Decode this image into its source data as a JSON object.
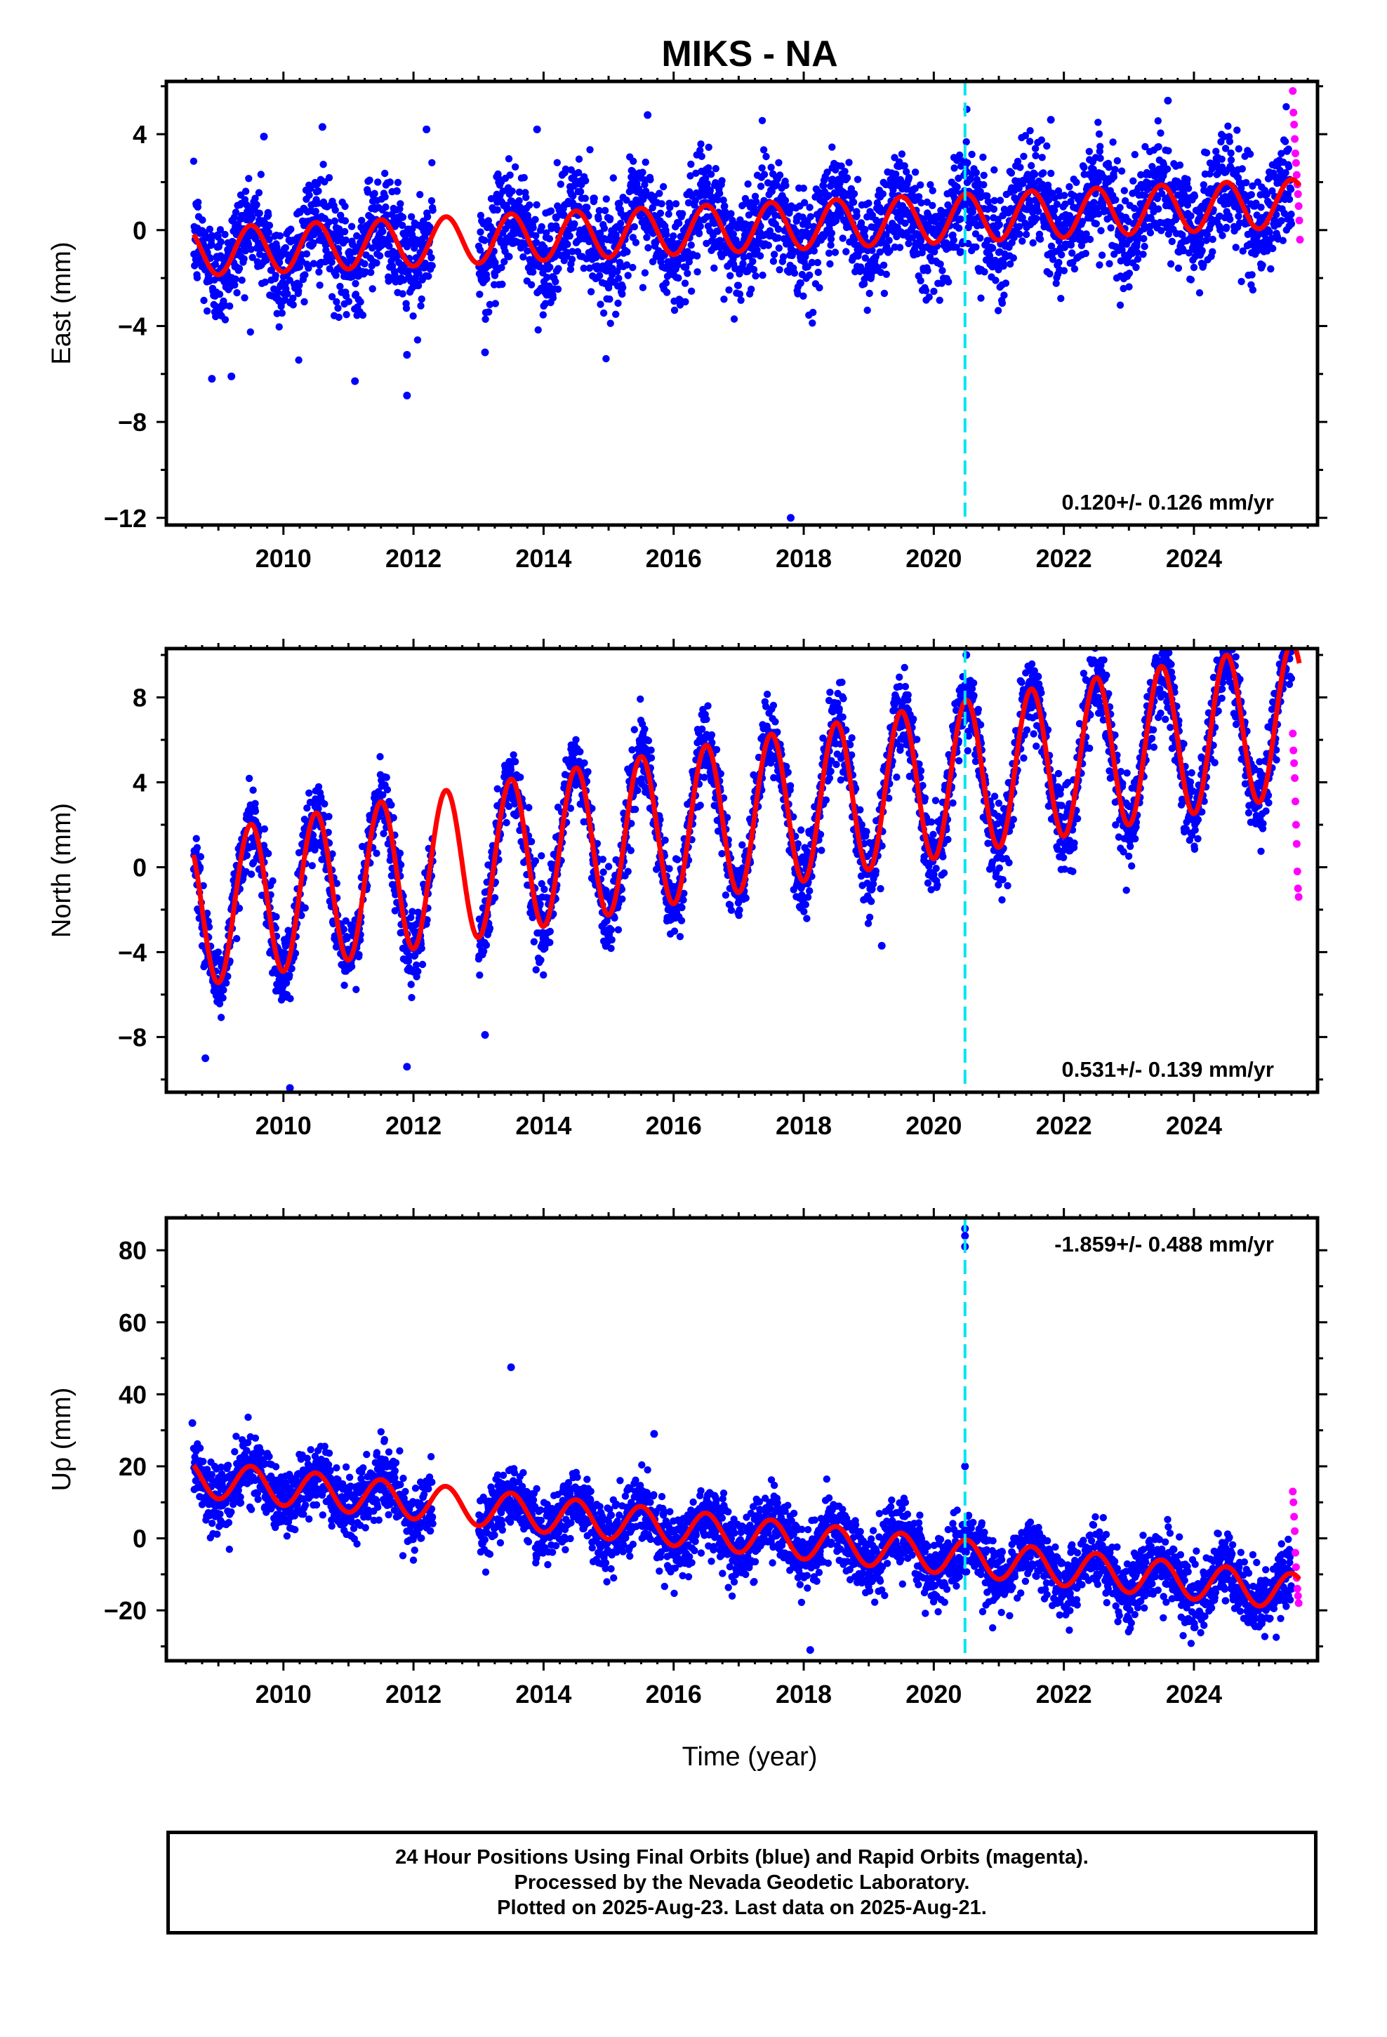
{
  "chart_data": {
    "type": "scatter",
    "title": "MIKS - NA",
    "xlabel": "Time (year)",
    "x_tick_labels": [
      "2010",
      "2012",
      "2014",
      "2016",
      "2018",
      "2020",
      "2022",
      "2024"
    ],
    "xlim": [
      2008.2,
      2025.9
    ],
    "event_line_x": 2020.48,
    "colors": {
      "final": "#0000ff",
      "rapid": "#ff00ff",
      "model": "#ff0000",
      "event": "#00e5ee"
    },
    "panels": [
      {
        "name": "East",
        "ylabel": "East (mm)",
        "ylim": [
          -12.3,
          6.2
        ],
        "y_ticks": [
          4,
          0,
          -4,
          -8,
          -12
        ],
        "y_tick_labels": [
          "4",
          "0",
          "−4",
          "−8",
          "−12"
        ],
        "rate_label": "0.120+/- 0.126 mm/yr",
        "rate_position": "bottom-right",
        "model": {
          "offset": -0.9,
          "rate": 0.12,
          "amp": 1.0,
          "noise": 1.1,
          "start_value": -1.5,
          "outliers": [
            [
              2008.9,
              -6.2
            ],
            [
              2009.2,
              -6.1
            ],
            [
              2011.1,
              -6.3
            ],
            [
              2011.9,
              -5.2
            ],
            [
              2011.9,
              -6.9
            ],
            [
              2013.1,
              -5.1
            ],
            [
              2017.8,
              -12.0
            ],
            [
              2009.7,
              3.9
            ],
            [
              2010.6,
              4.3
            ],
            [
              2012.2,
              4.2
            ],
            [
              2013.9,
              4.2
            ],
            [
              2015.6,
              4.8
            ],
            [
              2021.8,
              4.6
            ],
            [
              2023.6,
              5.4
            ]
          ]
        },
        "rapid_points": [
          [
            2025.52,
            5.8
          ],
          [
            2025.53,
            4.9
          ],
          [
            2025.54,
            4.4
          ],
          [
            2025.55,
            3.8
          ],
          [
            2025.56,
            3.2
          ],
          [
            2025.57,
            2.8
          ],
          [
            2025.58,
            2.3
          ],
          [
            2025.59,
            1.9
          ],
          [
            2025.6,
            1.5
          ],
          [
            2025.61,
            1.0
          ],
          [
            2025.62,
            0.4
          ],
          [
            2025.63,
            -0.4
          ]
        ]
      },
      {
        "name": "North",
        "ylabel": "North (mm)",
        "ylim": [
          -10.6,
          10.3
        ],
        "y_ticks": [
          8,
          4,
          0,
          -4,
          -8
        ],
        "y_tick_labels": [
          "8",
          "4",
          "0",
          "−4",
          "−8"
        ],
        "rate_label": "0.531+/- 0.139 mm/yr",
        "rate_position": "bottom-right",
        "model": {
          "offset": -2.0,
          "rate": 0.531,
          "amp": 3.6,
          "noise": 0.9,
          "start_value": -1.9,
          "outliers": [
            [
              2008.8,
              -9.0
            ],
            [
              2010.1,
              -10.4
            ],
            [
              2011.9,
              -9.4
            ],
            [
              2013.1,
              -7.9
            ],
            [
              2019.2,
              -3.7
            ],
            [
              2020.5,
              10.0
            ]
          ]
        },
        "rapid_points": [
          [
            2025.52,
            6.3
          ],
          [
            2025.53,
            5.5
          ],
          [
            2025.54,
            4.9
          ],
          [
            2025.55,
            4.2
          ],
          [
            2025.56,
            3.1
          ],
          [
            2025.57,
            2.0
          ],
          [
            2025.58,
            1.1
          ],
          [
            2025.59,
            -0.2
          ],
          [
            2025.6,
            -1.0
          ],
          [
            2025.61,
            -1.4
          ]
        ]
      },
      {
        "name": "Up",
        "ylabel": "Up (mm)",
        "ylim": [
          -34,
          89
        ],
        "y_ticks": [
          80,
          60,
          40,
          20,
          0,
          -20
        ],
        "y_tick_labels": [
          "80",
          "60",
          "40",
          "20",
          "0",
          "−20"
        ],
        "rate_label": "-1.859+/- 0.488 mm/yr",
        "rate_position": "top-right",
        "model": {
          "offset": 16.5,
          "rate": -1.859,
          "amp": 5.0,
          "noise": 4.5,
          "start_value": 22,
          "outliers": [
            [
              2008.6,
              32
            ],
            [
              2013.5,
              47.5
            ],
            [
              2015.7,
              29
            ],
            [
              2018.1,
              -31
            ],
            [
              2020.48,
              86
            ],
            [
              2020.48,
              84
            ],
            [
              2020.48,
              81
            ],
            [
              2020.48,
              20
            ]
          ]
        },
        "rapid_points": [
          [
            2025.52,
            13
          ],
          [
            2025.53,
            10
          ],
          [
            2025.54,
            6
          ],
          [
            2025.55,
            2
          ],
          [
            2025.56,
            -4
          ],
          [
            2025.57,
            -8
          ],
          [
            2025.58,
            -11
          ],
          [
            2025.59,
            -14
          ],
          [
            2025.6,
            -16
          ],
          [
            2025.61,
            -18
          ]
        ]
      }
    ],
    "data_gaps": [
      [
        2012.3,
        2013.0
      ]
    ],
    "footer_lines": [
      "24 Hour Positions Using Final Orbits (blue) and Rapid Orbits (magenta).",
      "Processed by the Nevada Geodetic Laboratory.",
      "Plotted on 2025-Aug-23. Last data on 2025-Aug-21."
    ]
  }
}
